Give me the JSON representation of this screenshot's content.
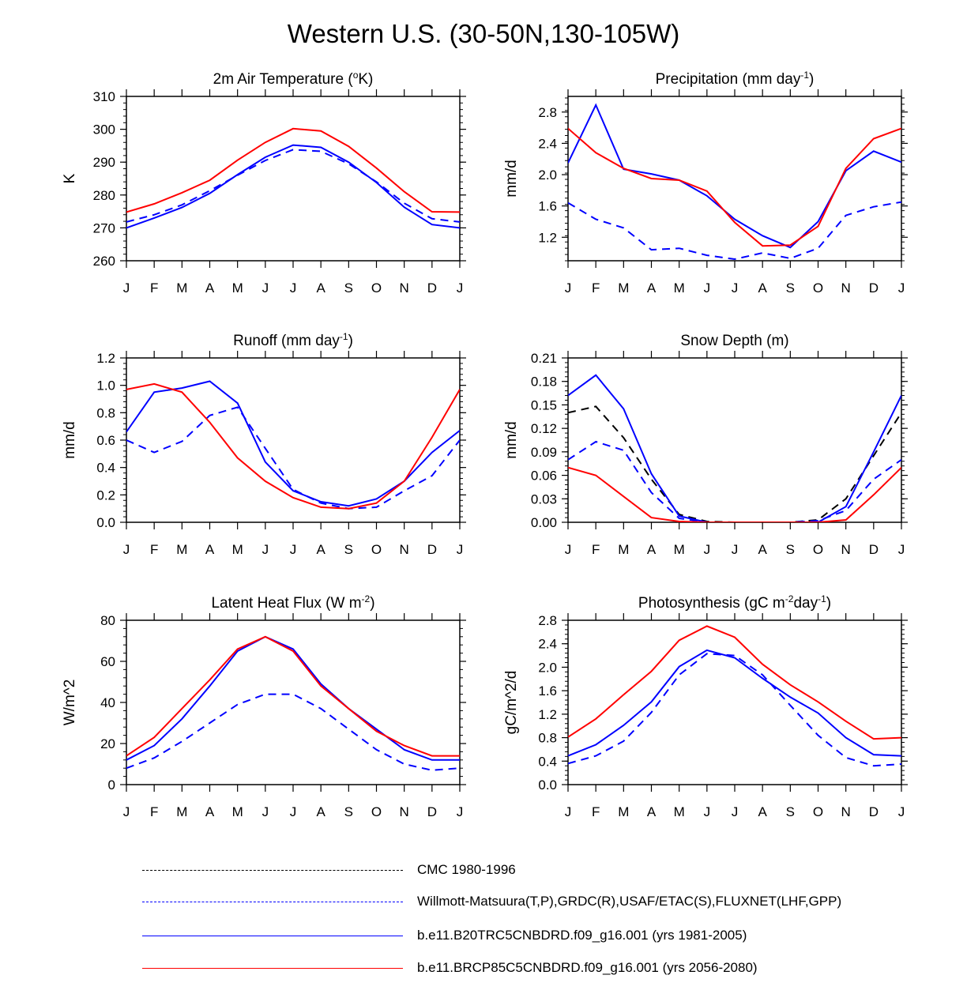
{
  "figure": {
    "title": "Western U.S. (30-50N,130-105W)"
  },
  "months": [
    "J",
    "F",
    "M",
    "A",
    "M",
    "J",
    "J",
    "A",
    "S",
    "O",
    "N",
    "D",
    "J"
  ],
  "colors": {
    "cmc": "#000000",
    "obs": "#0000ff",
    "b20": "#0000ff",
    "rcp": "#ff0000"
  },
  "legend": [
    {
      "key": "cmc",
      "label": "CMC 1980-1996",
      "color": "#000000",
      "dash": true
    },
    {
      "key": "obs",
      "label": "Willmott-Matsuura(T,P),GRDC(R),USAF/ETAC(S),FLUXNET(LHF,GPP)",
      "color": "#0000ff",
      "dash": true
    },
    {
      "key": "b20",
      "label": "b.e11.B20TRC5CNBDRD.f09_g16.001 (yrs 1981-2005)",
      "color": "#0000ff",
      "dash": false
    },
    {
      "key": "rcp",
      "label": "b.e11.BRCP85C5CNBDRD.f09_g16.001 (yrs 2056-2080)",
      "color": "#ff0000",
      "dash": false
    }
  ],
  "chart_data": [
    {
      "type": "line",
      "title": "2m Air Temperature (oK)",
      "title_parts": [
        {
          "t": "2m Air Temperature ("
        },
        {
          "t": "o",
          "sup": true
        },
        {
          "t": "K)"
        }
      ],
      "ylabel": "K",
      "ylim": [
        260,
        310
      ],
      "yticks": [
        260,
        270,
        280,
        290,
        300,
        310
      ],
      "ytick_labels": [
        "260",
        "270",
        "280",
        "290",
        "300",
        "310"
      ],
      "series": [
        {
          "name": "Willmott-Matsuura",
          "key": "obs",
          "values": [
            271.8,
            274.0,
            277.0,
            281.3,
            286.0,
            290.5,
            293.8,
            293.3,
            289.5,
            284.0,
            277.5,
            272.8,
            271.8
          ]
        },
        {
          "name": "b.e11.B20TRC5CNBDRD",
          "key": "b20",
          "values": [
            270.0,
            273.0,
            276.2,
            280.5,
            286.2,
            291.5,
            295.2,
            294.5,
            290.0,
            283.8,
            276.3,
            271.0,
            270.0
          ]
        },
        {
          "name": "b.e11.BRCP85C5CNBDRD",
          "key": "rcp",
          "values": [
            274.8,
            277.3,
            280.7,
            284.5,
            290.6,
            296.0,
            300.2,
            299.5,
            294.8,
            288.2,
            281.0,
            274.9,
            274.8
          ]
        }
      ]
    },
    {
      "type": "line",
      "title": "Precipitation (mm day-1)",
      "title_parts": [
        {
          "t": "Precipitation (mm day"
        },
        {
          "t": "-1",
          "sup": true
        },
        {
          "t": ")"
        }
      ],
      "ylabel": "mm/d",
      "ylim": [
        0.9,
        3.0
      ],
      "yticks": [
        1.2,
        1.6,
        2.0,
        2.4,
        2.8
      ],
      "ytick_labels": [
        "1.2",
        "1.6",
        "2.0",
        "2.4",
        "2.8"
      ],
      "series": [
        {
          "name": "Willmott-Matsuura",
          "key": "obs",
          "values": [
            1.64,
            1.43,
            1.32,
            1.04,
            1.06,
            0.97,
            0.92,
            1.0,
            0.93,
            1.06,
            1.48,
            1.59,
            1.65
          ]
        },
        {
          "name": "b.e11.B20TRC5CNBDRD",
          "key": "b20",
          "values": [
            2.15,
            2.89,
            2.07,
            2.01,
            1.93,
            1.73,
            1.43,
            1.22,
            1.07,
            1.4,
            2.05,
            2.3,
            2.16
          ]
        },
        {
          "name": "b.e11.BRCP85C5CNBDRD",
          "key": "rcp",
          "values": [
            2.59,
            2.28,
            2.08,
            1.95,
            1.93,
            1.79,
            1.39,
            1.09,
            1.1,
            1.34,
            2.08,
            2.46,
            2.59
          ]
        }
      ]
    },
    {
      "type": "line",
      "title": "Runoff (mm day-1)",
      "title_parts": [
        {
          "t": "Runoff (mm day"
        },
        {
          "t": "-1",
          "sup": true
        },
        {
          "t": ")"
        }
      ],
      "ylabel": "mm/d",
      "ylim": [
        0.0,
        1.2
      ],
      "yticks": [
        0.0,
        0.2,
        0.4,
        0.6,
        0.8,
        1.0,
        1.2
      ],
      "ytick_labels": [
        "0.0",
        "0.2",
        "0.4",
        "0.6",
        "0.8",
        "1.0",
        "1.2"
      ],
      "series": [
        {
          "name": "GRDC",
          "key": "obs",
          "values": [
            0.6,
            0.51,
            0.59,
            0.78,
            0.84,
            0.54,
            0.24,
            0.14,
            0.1,
            0.11,
            0.23,
            0.34,
            0.6
          ]
        },
        {
          "name": "b.e11.B20TRC5CNBDRD",
          "key": "b20",
          "values": [
            0.66,
            0.95,
            0.98,
            1.03,
            0.87,
            0.44,
            0.23,
            0.15,
            0.12,
            0.17,
            0.3,
            0.51,
            0.67
          ]
        },
        {
          "name": "b.e11.BRCP85C5CNBDRD",
          "key": "rcp",
          "values": [
            0.97,
            1.01,
            0.95,
            0.73,
            0.47,
            0.3,
            0.18,
            0.11,
            0.1,
            0.14,
            0.3,
            0.62,
            0.97
          ]
        }
      ]
    },
    {
      "type": "line",
      "title": "Snow Depth (m)",
      "title_parts": [
        {
          "t": "Snow Depth (m)"
        }
      ],
      "ylabel": "mm/d",
      "ylim": [
        0.0,
        0.21
      ],
      "yticks": [
        0.0,
        0.03,
        0.06,
        0.09,
        0.12,
        0.15,
        0.18,
        0.21
      ],
      "ytick_labels": [
        "0.00",
        "0.03",
        "0.06",
        "0.09",
        "0.12",
        "0.15",
        "0.18",
        "0.21"
      ],
      "series": [
        {
          "name": "CMC 1980-1996",
          "key": "cmc",
          "values": [
            0.14,
            0.148,
            0.108,
            0.055,
            0.01,
            0.001,
            0.0,
            0.0,
            0.0,
            0.003,
            0.03,
            0.085,
            0.14
          ]
        },
        {
          "name": "USAF/ETAC",
          "key": "obs",
          "values": [
            0.08,
            0.103,
            0.092,
            0.038,
            0.005,
            0.0,
            0.0,
            0.0,
            0.0,
            0.002,
            0.015,
            0.055,
            0.08
          ]
        },
        {
          "name": "b.e11.B20TRC5CNBDRD",
          "key": "b20",
          "values": [
            0.162,
            0.188,
            0.145,
            0.062,
            0.008,
            0.0,
            0.0,
            0.0,
            0.0,
            0.0,
            0.02,
            0.09,
            0.162
          ]
        },
        {
          "name": "b.e11.BRCP85C5CNBDRD",
          "key": "rcp",
          "values": [
            0.07,
            0.06,
            0.033,
            0.006,
            0.001,
            0.0,
            0.0,
            0.0,
            0.0,
            0.0,
            0.003,
            0.035,
            0.07
          ]
        }
      ]
    },
    {
      "type": "line",
      "title": "Latent Heat Flux (W m-2)",
      "title_parts": [
        {
          "t": "Latent Heat Flux (W m"
        },
        {
          "t": "-2",
          "sup": true
        },
        {
          "t": ")"
        }
      ],
      "ylabel": "W/m^2",
      "ylim": [
        0,
        80
      ],
      "yticks": [
        0,
        20,
        40,
        60,
        80
      ],
      "ytick_labels": [
        "0",
        "20",
        "40",
        "60",
        "80"
      ],
      "series": [
        {
          "name": "FLUXNET",
          "key": "obs",
          "values": [
            8,
            13,
            21,
            30,
            39,
            44,
            44,
            37,
            27,
            17,
            10,
            7,
            8
          ]
        },
        {
          "name": "b.e11.B20TRC5CNBDRD",
          "key": "b20",
          "values": [
            12,
            19,
            32,
            48,
            65,
            72,
            66,
            49,
            37,
            27,
            17,
            12,
            12
          ]
        },
        {
          "name": "b.e11.BRCP85C5CNBDRD",
          "key": "rcp",
          "values": [
            14,
            23,
            37,
            51,
            66,
            72,
            65,
            48,
            37,
            26,
            19,
            14,
            14
          ]
        }
      ]
    },
    {
      "type": "line",
      "title": "Photosynthesis (gC m-2day-1)",
      "title_parts": [
        {
          "t": "Photosynthesis (gC m"
        },
        {
          "t": "-2",
          "sup": true
        },
        {
          "t": "day"
        },
        {
          "t": "-1",
          "sup": true
        },
        {
          "t": ")"
        }
      ],
      "ylabel": "gC/m^2/d",
      "ylim": [
        0.0,
        2.8
      ],
      "yticks": [
        0.0,
        0.4,
        0.8,
        1.2,
        1.6,
        2.0,
        2.4,
        2.8
      ],
      "ytick_labels": [
        "0.0",
        "0.4",
        "0.8",
        "1.2",
        "1.6",
        "2.0",
        "2.4",
        "2.8"
      ],
      "series": [
        {
          "name": "FLUXNET",
          "key": "obs",
          "values": [
            0.36,
            0.49,
            0.74,
            1.23,
            1.87,
            2.23,
            2.2,
            1.87,
            1.35,
            0.84,
            0.46,
            0.32,
            0.35
          ]
        },
        {
          "name": "b.e11.B20TRC5CNBDRD",
          "key": "b20",
          "values": [
            0.49,
            0.68,
            1.01,
            1.41,
            2.01,
            2.29,
            2.16,
            1.81,
            1.49,
            1.22,
            0.8,
            0.51,
            0.49
          ]
        },
        {
          "name": "b.e11.BRCP85C5CNBDRD",
          "key": "rcp",
          "values": [
            0.81,
            1.12,
            1.53,
            1.93,
            2.46,
            2.7,
            2.51,
            2.05,
            1.7,
            1.41,
            1.08,
            0.78,
            0.8
          ]
        }
      ]
    }
  ]
}
